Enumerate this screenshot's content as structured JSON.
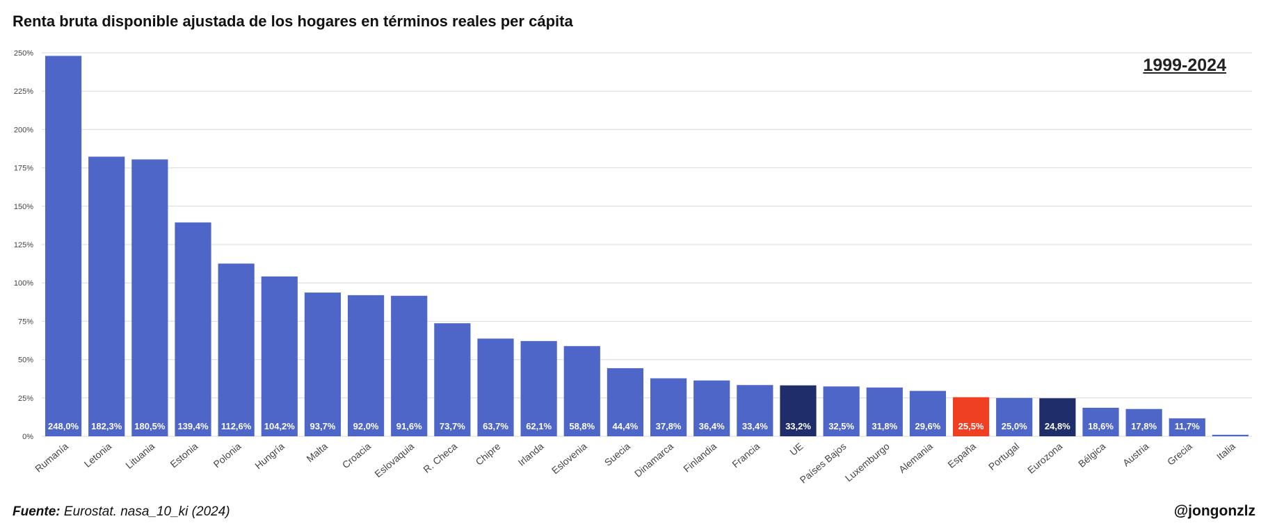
{
  "header": {
    "title": "Renta bruta disponible ajustada de los hogares en términos reales per cápita",
    "period": "1999-2024"
  },
  "footer": {
    "source_label": "Fuente:",
    "source_text": "Eurostat. nasa_10_ki (2024)",
    "handle": "@jongonzlz"
  },
  "colors": {
    "default_bar": "#4f66c9",
    "aggregate_bar": "#1f2d6b",
    "highlight_bar": "#ef4023",
    "grid": "#d9d9d9",
    "value_label": "#ffffff"
  },
  "chart_data": {
    "type": "bar",
    "title": "Renta bruta disponible ajustada de los hogares en términos reales per cápita",
    "xlabel": "",
    "ylabel": "",
    "ylim": [
      0,
      250
    ],
    "yticks": [
      "0%",
      "25%",
      "50%",
      "75%",
      "100%",
      "125%",
      "150%",
      "175%",
      "200%",
      "225%",
      "250%"
    ],
    "grid": true,
    "categories": [
      "Rumanía",
      "Letonia",
      "Lituania",
      "Estonia",
      "Polonia",
      "Hungría",
      "Malta",
      "Croacia",
      "Eslovaquia",
      "R. Checa",
      "Chipre",
      "Irlanda",
      "Eslovenia",
      "Suecia",
      "Dinamarca",
      "Finlandia",
      "Francia",
      "UE",
      "Países Bajos",
      "Luxemburgo",
      "Alemania",
      "España",
      "Portugal",
      "Eurozona",
      "Bélgica",
      "Austria",
      "Grecia",
      "Italia"
    ],
    "values": [
      248.0,
      182.3,
      180.5,
      139.4,
      112.6,
      104.2,
      93.7,
      92.0,
      91.6,
      73.7,
      63.7,
      62.1,
      58.8,
      44.4,
      37.8,
      36.4,
      33.4,
      33.2,
      32.5,
      31.8,
      29.6,
      25.5,
      25.0,
      24.8,
      18.6,
      17.8,
      11.7,
      1.0
    ],
    "value_labels": [
      "248,0%",
      "182,3%",
      "180,5%",
      "139,4%",
      "112,6%",
      "104,2%",
      "93,7%",
      "92,0%",
      "91,6%",
      "73,7%",
      "63,7%",
      "62,1%",
      "58,8%",
      "44,4%",
      "37,8%",
      "36,4%",
      "33,4%",
      "33,2%",
      "32,5%",
      "31,8%",
      "29,6%",
      "25,5%",
      "25,0%",
      "24,8%",
      "18,6%",
      "17,8%",
      "11,7%",
      ""
    ],
    "bar_roles": [
      "default",
      "default",
      "default",
      "default",
      "default",
      "default",
      "default",
      "default",
      "default",
      "default",
      "default",
      "default",
      "default",
      "default",
      "default",
      "default",
      "default",
      "aggregate",
      "default",
      "default",
      "default",
      "highlight",
      "default",
      "aggregate",
      "default",
      "default",
      "default",
      "default"
    ]
  }
}
